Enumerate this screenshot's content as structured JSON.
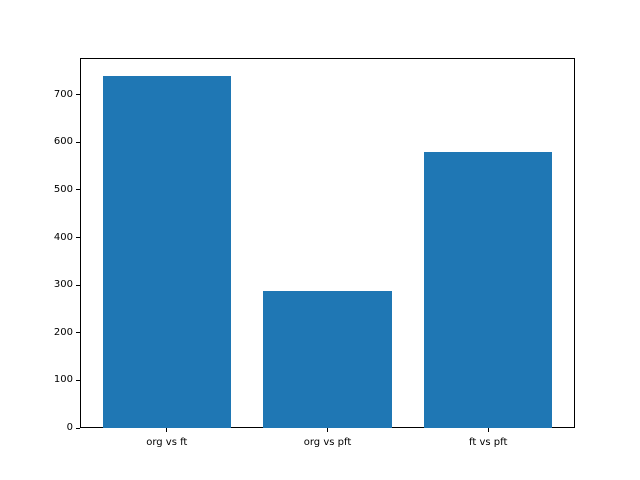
{
  "chart_data": {
    "type": "bar",
    "categories": [
      "org vs ft",
      "org vs pft",
      "ft vs pft"
    ],
    "values": [
      740,
      288,
      579
    ],
    "title": "",
    "xlabel": "",
    "ylabel": "",
    "ylim": [
      0,
      777
    ],
    "yticks": [
      0,
      100,
      200,
      300,
      400,
      500,
      600,
      700
    ],
    "bar_color": "#1f77b4",
    "bar_width_fraction": 0.8,
    "grid": false,
    "legend": null,
    "background_color": "#ffffff",
    "spine_color": "#000000",
    "tick_text_color": "#000000"
  }
}
